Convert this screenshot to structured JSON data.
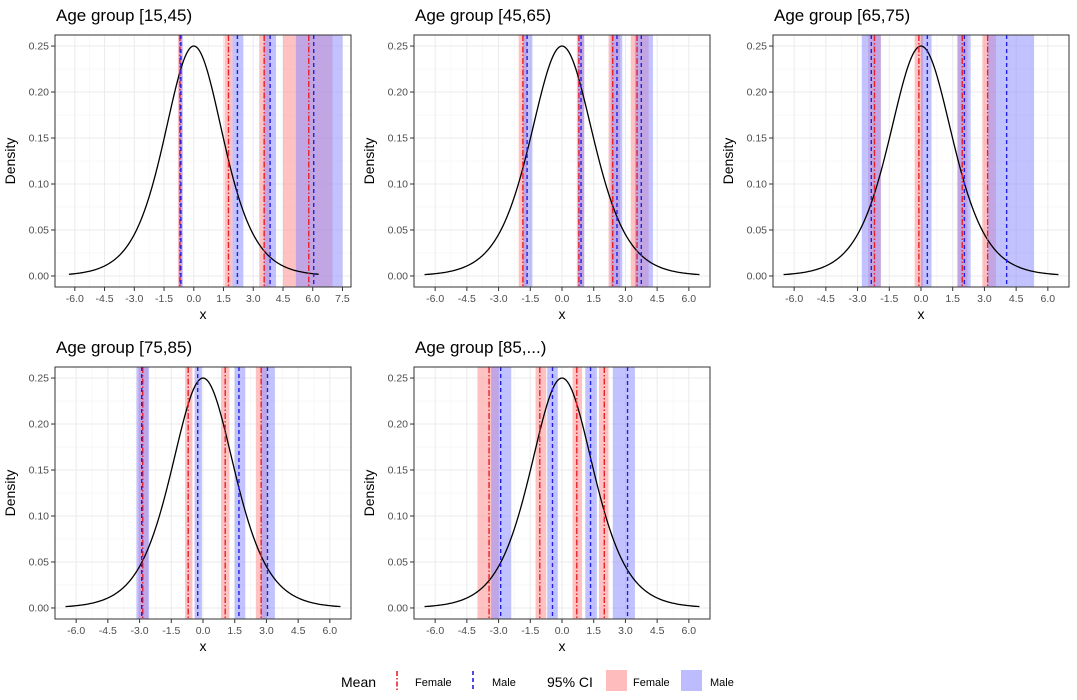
{
  "legend": {
    "mean_title": "Mean",
    "ci_title": "95% CI",
    "female_label": "Female",
    "male_label": "Male"
  },
  "colors": {
    "female_line": "#e8202a",
    "male_line": "#2020e8",
    "female_ci": "#ff8f8f",
    "male_ci": "#8f8fff",
    "density_curve": "#000000",
    "grid_major": "#ebebeb",
    "grid_minor": "#f4f4f4",
    "panel_border": "#333333"
  },
  "chart_data": [
    {
      "type": "line",
      "title": "Age group [15,45)",
      "xlabel": "x",
      "ylabel": "Density",
      "xlim": [
        -7.0,
        7.93
      ],
      "ylim": [
        -0.012,
        0.262
      ],
      "x_ticks": [
        -6.0,
        -4.5,
        -3.0,
        -1.5,
        0.0,
        1.5,
        3.0,
        4.5,
        6.0,
        7.5
      ],
      "x_tick_labels": [
        "-6.0",
        "-4.5",
        "-3.0",
        "-1.5",
        "0.0",
        "1.5",
        "3.0",
        "4.5",
        "6.0",
        "7.5"
      ],
      "y_ticks": [
        0.0,
        0.05,
        0.1,
        0.15,
        0.2,
        0.25
      ],
      "y_tick_labels": [
        "0.00",
        "0.05",
        "0.10",
        "0.15",
        "0.20",
        "0.25"
      ],
      "curve_range": [
        -6.3,
        6.3
      ],
      "female_means": [
        -0.7,
        1.75,
        3.55,
        5.8
      ],
      "female_ci": [
        [
          -0.8,
          -0.6
        ],
        [
          1.55,
          1.95
        ],
        [
          3.3,
          3.85
        ],
        [
          4.5,
          7.0
        ]
      ],
      "male_means": [
        -0.65,
        2.2,
        3.85,
        6.05
      ],
      "male_ci": [
        [
          -0.75,
          -0.55
        ],
        [
          1.95,
          2.5
        ],
        [
          3.55,
          4.15
        ],
        [
          5.15,
          7.5
        ]
      ]
    },
    {
      "type": "line",
      "title": "Age group [45,65)",
      "xlabel": "x",
      "ylabel": "Density",
      "xlim": [
        -7.0,
        7.0
      ],
      "ylim": [
        -0.012,
        0.262
      ],
      "x_ticks": [
        -6.0,
        -4.5,
        -3.0,
        -1.5,
        0.0,
        1.5,
        3.0,
        4.5,
        6.0
      ],
      "x_tick_labels": [
        "-6.0",
        "-4.5",
        "-3.0",
        "-1.5",
        "0.0",
        "1.5",
        "3.0",
        "4.5",
        "6.0"
      ],
      "y_ticks": [
        0.0,
        0.05,
        0.1,
        0.15,
        0.2,
        0.25
      ],
      "y_tick_labels": [
        "0.00",
        "0.05",
        "0.10",
        "0.15",
        "0.20",
        "0.25"
      ],
      "curve_range": [
        -6.5,
        6.5
      ],
      "female_means": [
        -1.85,
        0.8,
        2.4,
        3.55
      ],
      "female_ci": [
        [
          -2.05,
          -1.65
        ],
        [
          0.7,
          1.05
        ],
        [
          2.2,
          2.75
        ],
        [
          3.25,
          4.1
        ]
      ],
      "male_means": [
        -1.65,
        0.9,
        2.6,
        3.75
      ],
      "male_ci": [
        [
          -1.85,
          -1.4
        ],
        [
          0.75,
          1.05
        ],
        [
          2.3,
          2.85
        ],
        [
          3.45,
          4.3
        ]
      ]
    },
    {
      "type": "line",
      "title": "Age group [65,75)",
      "xlabel": "x",
      "ylabel": "Density",
      "xlim": [
        -7.0,
        7.0
      ],
      "ylim": [
        -0.012,
        0.262
      ],
      "x_ticks": [
        -6.0,
        -4.5,
        -3.0,
        -1.5,
        0.0,
        1.5,
        3.0,
        4.5,
        6.0
      ],
      "x_tick_labels": [
        "-6.0",
        "-4.5",
        "-3.0",
        "-1.5",
        "0.0",
        "1.5",
        "3.0",
        "4.5",
        "6.0"
      ],
      "y_ticks": [
        0.0,
        0.05,
        0.1,
        0.15,
        0.2,
        0.25
      ],
      "y_tick_labels": [
        "0.00",
        "0.05",
        "0.10",
        "0.15",
        "0.20",
        "0.25"
      ],
      "curve_range": [
        -6.5,
        6.5
      ],
      "female_means": [
        -2.2,
        -0.1,
        1.95,
        3.15
      ],
      "female_ci": [
        [
          -2.5,
          -1.9
        ],
        [
          -0.3,
          0.1
        ],
        [
          1.7,
          2.2
        ],
        [
          2.9,
          3.55
        ]
      ],
      "male_means": [
        -2.35,
        0.3,
        2.05,
        4.05
      ],
      "male_ci": [
        [
          -2.8,
          -1.9
        ],
        [
          0.0,
          0.5
        ],
        [
          1.75,
          2.35
        ],
        [
          3.15,
          5.35
        ]
      ]
    },
    {
      "type": "line",
      "title": "Age group [75,85)",
      "xlabel": "x",
      "ylabel": "Density",
      "xlim": [
        -7.0,
        7.0
      ],
      "ylim": [
        -0.012,
        0.262
      ],
      "x_ticks": [
        -6.0,
        -4.5,
        -3.0,
        -1.5,
        0.0,
        1.5,
        3.0,
        4.5,
        6.0
      ],
      "x_tick_labels": [
        "-6.0",
        "-4.5",
        "-3.0",
        "-1.5",
        "0.0",
        "1.5",
        "3.0",
        "4.5",
        "6.0"
      ],
      "y_ticks": [
        0.0,
        0.05,
        0.1,
        0.15,
        0.2,
        0.25
      ],
      "y_tick_labels": [
        "0.00",
        "0.05",
        "0.10",
        "0.15",
        "0.20",
        "0.25"
      ],
      "curve_range": [
        -6.5,
        6.5
      ],
      "female_means": [
        -2.85,
        -0.7,
        1.05,
        2.75
      ],
      "female_ci": [
        [
          -3.05,
          -2.6
        ],
        [
          -0.85,
          -0.5
        ],
        [
          0.85,
          1.25
        ],
        [
          2.5,
          3.0
        ]
      ],
      "male_means": [
        -2.9,
        -0.25,
        1.7,
        3.05
      ],
      "male_ci": [
        [
          -3.15,
          -2.55
        ],
        [
          -0.4,
          -0.05
        ],
        [
          1.5,
          2.0
        ],
        [
          2.75,
          3.4
        ]
      ]
    },
    {
      "type": "line",
      "title": "Age group [85,...)",
      "xlabel": "x",
      "ylabel": "Density",
      "xlim": [
        -7.0,
        7.0
      ],
      "ylim": [
        -0.012,
        0.262
      ],
      "x_ticks": [
        -6.0,
        -4.5,
        -3.0,
        -1.5,
        0.0,
        1.5,
        3.0,
        4.5,
        6.0
      ],
      "x_tick_labels": [
        "-6.0",
        "-4.5",
        "-3.0",
        "-1.5",
        "0.0",
        "1.5",
        "3.0",
        "4.5",
        "6.0"
      ],
      "y_ticks": [
        0.0,
        0.05,
        0.1,
        0.15,
        0.2,
        0.25
      ],
      "y_tick_labels": [
        "0.00",
        "0.05",
        "0.10",
        "0.15",
        "0.20",
        "0.25"
      ],
      "curve_range": [
        -6.5,
        6.5
      ],
      "female_means": [
        -3.45,
        -1.05,
        0.7,
        2.0
      ],
      "female_ci": [
        [
          -4.0,
          -3.0
        ],
        [
          -1.25,
          -0.75
        ],
        [
          0.5,
          0.95
        ],
        [
          1.75,
          2.2
        ]
      ],
      "male_means": [
        -2.9,
        -0.45,
        1.35,
        3.1
      ],
      "male_ci": [
        [
          -3.35,
          -2.4
        ],
        [
          -0.7,
          -0.2
        ],
        [
          1.1,
          1.65
        ],
        [
          2.4,
          3.45
        ]
      ]
    }
  ]
}
